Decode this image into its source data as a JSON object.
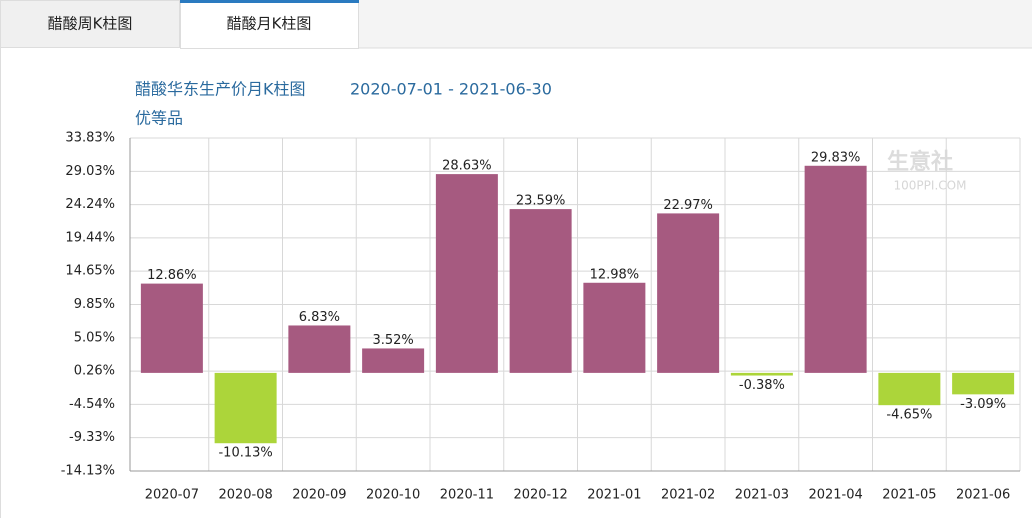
{
  "tabs": [
    "醋酸周K柱图",
    "醋酸月K柱图"
  ],
  "chart_data": {
    "type": "bar",
    "title": "醋酸华东生产价月K柱图",
    "date_range": "2020-07-01 - 2021-06-30",
    "subtitle": "优等品",
    "watermark": [
      "生意社",
      "100PPI.COM"
    ],
    "categories": [
      "2020-07",
      "2020-08",
      "2020-09",
      "2020-10",
      "2020-11",
      "2020-12",
      "2021-01",
      "2021-02",
      "2021-03",
      "2021-04",
      "2021-05",
      "2021-06"
    ],
    "values": [
      12.86,
      -10.13,
      6.83,
      3.52,
      28.63,
      23.59,
      12.98,
      22.97,
      -0.38,
      29.83,
      -4.65,
      -3.09
    ],
    "value_labels": [
      "12.86%",
      "-10.13%",
      "6.83%",
      "3.52%",
      "28.63%",
      "23.59%",
      "12.98%",
      "22.97%",
      "-0.38%",
      "29.83%",
      "-4.65%",
      "-3.09%"
    ],
    "color_up": "#a65a80",
    "color_down": "#acd53a",
    "ylim": [
      -14.13,
      33.83
    ],
    "yticks": [
      {
        "value": 33.83,
        "label": "33.83%"
      },
      {
        "value": 29.03,
        "label": "29.03%"
      },
      {
        "value": 24.24,
        "label": "24.24%"
      },
      {
        "value": 19.44,
        "label": "19.44%"
      },
      {
        "value": 14.65,
        "label": "14.65%"
      },
      {
        "value": 9.85,
        "label": "9.85%"
      },
      {
        "value": 5.05,
        "label": "5.05%"
      },
      {
        "value": 0.26,
        "label": "0.26%"
      },
      {
        "value": -4.54,
        "label": "-4.54%"
      },
      {
        "value": -9.33,
        "label": "-9.33%"
      },
      {
        "value": -14.13,
        "label": "-14.13%"
      }
    ],
    "grid": true
  }
}
